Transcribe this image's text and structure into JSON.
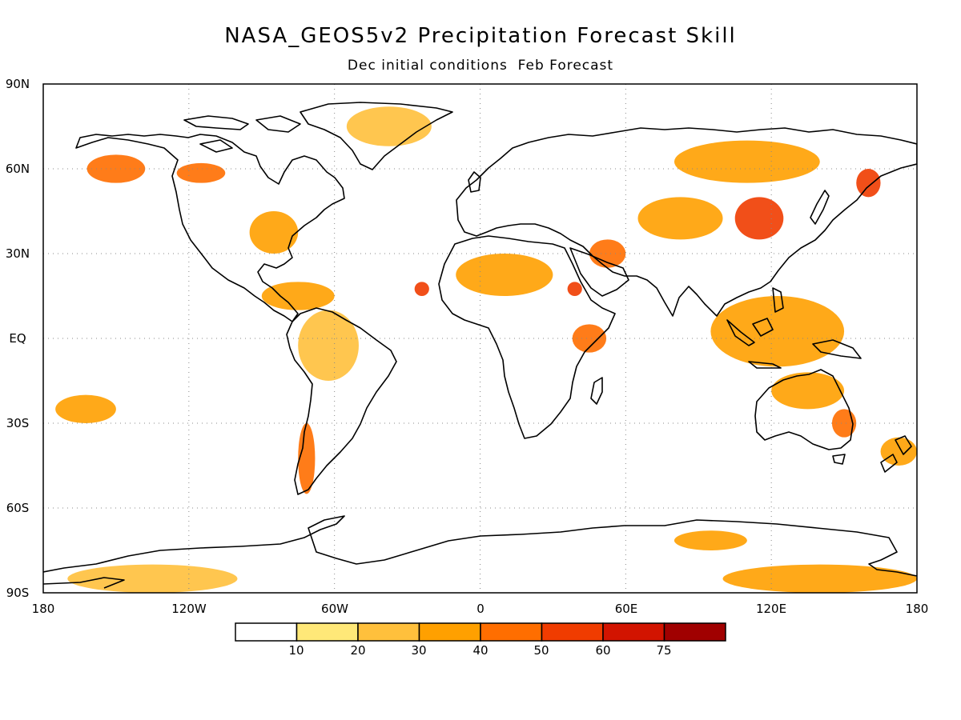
{
  "title": "NASA_GEOS5v2 Precipitation Forecast Skill",
  "subtitle": "Dec initial conditions  Feb Forecast",
  "chart_data": {
    "type": "heatmap",
    "variable": "precipitation forecast skill",
    "map_projection": "cylindrical equidistant (global)",
    "xlim": [
      -180,
      180
    ],
    "ylim": [
      -90,
      90
    ],
    "grid": true,
    "x_ticks": [
      {
        "value": -180,
        "label": "180"
      },
      {
        "value": -120,
        "label": "120W"
      },
      {
        "value": -60,
        "label": "60W"
      },
      {
        "value": 0,
        "label": "0"
      },
      {
        "value": 60,
        "label": "60E"
      },
      {
        "value": 120,
        "label": "120E"
      },
      {
        "value": 180,
        "label": "180"
      }
    ],
    "y_ticks": [
      {
        "value": 90,
        "label": "90N"
      },
      {
        "value": 60,
        "label": "60N"
      },
      {
        "value": 30,
        "label": "30N"
      },
      {
        "value": 0,
        "label": "EQ"
      },
      {
        "value": -30,
        "label": "30S"
      },
      {
        "value": -60,
        "label": "60S"
      },
      {
        "value": -90,
        "label": "90S"
      }
    ],
    "colorbar": {
      "placement": "bottom",
      "bins": [
        {
          "from": null,
          "to": 10,
          "color": "#ffffff"
        },
        {
          "from": 10,
          "to": 20,
          "color": "#ffe878"
        },
        {
          "from": 20,
          "to": 30,
          "color": "#ffc03c"
        },
        {
          "from": 30,
          "to": 40,
          "color": "#ffa000"
        },
        {
          "from": 40,
          "to": 50,
          "color": "#ff6e00"
        },
        {
          "from": 50,
          "to": 60,
          "color": "#f03c00"
        },
        {
          "from": 60,
          "to": 75,
          "color": "#d21400"
        },
        {
          "from": 75,
          "to": null,
          "color": "#a00000"
        }
      ],
      "tick_labels": [
        "10",
        "20",
        "30",
        "40",
        "50",
        "60",
        "75"
      ]
    },
    "regions": [
      {
        "name": "Alaska",
        "lon": [
          -162,
          -138
        ],
        "lat": [
          55,
          65
        ],
        "level": 40
      },
      {
        "name": "Western Canada",
        "lon": [
          -125,
          -105
        ],
        "lat": [
          55,
          62
        ],
        "level": 40
      },
      {
        "name": "Greenland",
        "lon": [
          -55,
          -20
        ],
        "lat": [
          68,
          82
        ],
        "level": 20
      },
      {
        "name": "Eastern United States",
        "lon": [
          -95,
          -75
        ],
        "lat": [
          30,
          45
        ],
        "level": 30
      },
      {
        "name": "Central America",
        "lon": [
          -90,
          -60
        ],
        "lat": [
          10,
          20
        ],
        "level": 30
      },
      {
        "name": "Tropical Atlantic",
        "lon": [
          -27,
          -21
        ],
        "lat": [
          15,
          20
        ],
        "level": 50
      },
      {
        "name": "Northern South America",
        "lon": [
          -75,
          -50
        ],
        "lat": [
          -15,
          10
        ],
        "level": 20
      },
      {
        "name": "Chile",
        "lon": [
          -75,
          -68
        ],
        "lat": [
          -55,
          -30
        ],
        "level": 40
      },
      {
        "name": "Sahara",
        "lon": [
          -10,
          30
        ],
        "lat": [
          15,
          30
        ],
        "level": 30
      },
      {
        "name": "Red Sea",
        "lon": [
          36,
          42
        ],
        "lat": [
          15,
          20
        ],
        "level": 50
      },
      {
        "name": "East Africa",
        "lon": [
          38,
          52
        ],
        "lat": [
          -5,
          5
        ],
        "level": 40
      },
      {
        "name": "Arabian Peninsula",
        "lon": [
          45,
          60
        ],
        "lat": [
          25,
          35
        ],
        "level": 40
      },
      {
        "name": "Siberia",
        "lon": [
          80,
          140
        ],
        "lat": [
          55,
          70
        ],
        "level": 30
      },
      {
        "name": "Central Asia",
        "lon": [
          65,
          100
        ],
        "lat": [
          35,
          50
        ],
        "level": 30
      },
      {
        "name": "Northern China",
        "lon": [
          105,
          125
        ],
        "lat": [
          35,
          50
        ],
        "level": 50
      },
      {
        "name": "Kamchatka",
        "lon": [
          155,
          165
        ],
        "lat": [
          50,
          60
        ],
        "level": 50
      },
      {
        "name": "Maritime Continent",
        "lon": [
          95,
          150
        ],
        "lat": [
          -10,
          15
        ],
        "level": 30
      },
      {
        "name": "Northern Australia",
        "lon": [
          120,
          150
        ],
        "lat": [
          -25,
          -12
        ],
        "level": 30
      },
      {
        "name": "Eastern Australia",
        "lon": [
          145,
          155
        ],
        "lat": [
          -35,
          -25
        ],
        "level": 40
      },
      {
        "name": "New Zealand",
        "lon": [
          165,
          180
        ],
        "lat": [
          -45,
          -35
        ],
        "level": 30
      },
      {
        "name": "South Pacific",
        "lon": [
          -175,
          -150
        ],
        "lat": [
          -30,
          -20
        ],
        "level": 30
      },
      {
        "name": "Antarctica West",
        "lon": [
          -170,
          -100
        ],
        "lat": [
          -90,
          -80
        ],
        "level": 20
      },
      {
        "name": "Antarctica East",
        "lon": [
          100,
          180
        ],
        "lat": [
          -90,
          -80
        ],
        "level": 30
      },
      {
        "name": "Antarctica Coast Indian",
        "lon": [
          80,
          110
        ],
        "lat": [
          -75,
          -68
        ],
        "level": 30
      }
    ]
  },
  "icons": {
    "map": "world-coastline-map"
  }
}
